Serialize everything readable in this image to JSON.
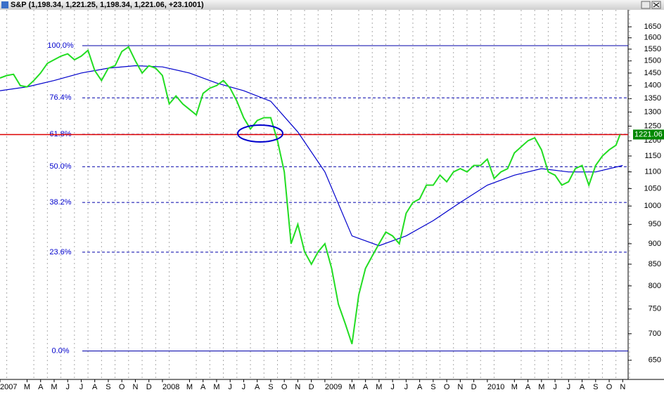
{
  "chart_data": {
    "type": "line",
    "title": "S&P (1,198.34, 1,221.25, 1,198.34, 1,221.06, +23.1001)",
    "log_y": true,
    "grid": true,
    "xlim": [
      0,
      46.4
    ],
    "ylim": [
      616,
      1730
    ],
    "yticks": [
      650,
      700,
      750,
      800,
      850,
      900,
      950,
      1000,
      1050,
      1100,
      1150,
      1200,
      1250,
      1300,
      1350,
      1400,
      1450,
      1500,
      1550,
      1600,
      1650
    ],
    "xticks": [
      {
        "value": 0,
        "label": "2007"
      },
      {
        "value": 2,
        "label": "M"
      },
      {
        "value": 3,
        "label": "A"
      },
      {
        "value": 4,
        "label": "M"
      },
      {
        "value": 5,
        "label": "J"
      },
      {
        "value": 6,
        "label": "J"
      },
      {
        "value": 7,
        "label": "A"
      },
      {
        "value": 8,
        "label": "S"
      },
      {
        "value": 9,
        "label": "O"
      },
      {
        "value": 10,
        "label": "N"
      },
      {
        "value": 11,
        "label": "D"
      },
      {
        "value": 12,
        "label": "2008"
      },
      {
        "value": 14,
        "label": "M"
      },
      {
        "value": 15,
        "label": "A"
      },
      {
        "value": 16,
        "label": "M"
      },
      {
        "value": 17,
        "label": "J"
      },
      {
        "value": 18,
        "label": "J"
      },
      {
        "value": 19,
        "label": "A"
      },
      {
        "value": 20,
        "label": "S"
      },
      {
        "value": 21,
        "label": "O"
      },
      {
        "value": 22,
        "label": "N"
      },
      {
        "value": 23,
        "label": "D"
      },
      {
        "value": 24,
        "label": "2009"
      },
      {
        "value": 26,
        "label": "M"
      },
      {
        "value": 27,
        "label": "A"
      },
      {
        "value": 28,
        "label": "M"
      },
      {
        "value": 29,
        "label": "J"
      },
      {
        "value": 30,
        "label": "J"
      },
      {
        "value": 31,
        "label": "A"
      },
      {
        "value": 32,
        "label": "S"
      },
      {
        "value": 33,
        "label": "O"
      },
      {
        "value": 34,
        "label": "N"
      },
      {
        "value": 35,
        "label": "D"
      },
      {
        "value": 36,
        "label": "2010"
      },
      {
        "value": 38,
        "label": "M"
      },
      {
        "value": 39,
        "label": "A"
      },
      {
        "value": 40,
        "label": "M"
      },
      {
        "value": 41,
        "label": "J"
      },
      {
        "value": 42,
        "label": "J"
      },
      {
        "value": 43,
        "label": "A"
      },
      {
        "value": 44,
        "label": "S"
      },
      {
        "value": 45,
        "label": "O"
      },
      {
        "value": 46,
        "label": "N"
      }
    ],
    "levels": [
      {
        "value": 1565,
        "label": "100.0%"
      },
      {
        "value": 1353,
        "label": "76.4%"
      },
      {
        "value": 1222,
        "label": "61.8%"
      },
      {
        "value": 1116,
        "label": "50.0%"
      },
      {
        "value": 1010,
        "label": "38.2%"
      },
      {
        "value": 879,
        "label": "23.6%"
      },
      {
        "value": 667,
        "label": "0.0%"
      }
    ],
    "last": 1221.06,
    "series": [
      {
        "color": "#0000cc",
        "x": [
          0,
          2,
          4,
          6,
          8,
          10,
          12,
          14,
          16,
          18,
          20,
          22,
          24,
          26,
          28,
          30,
          32,
          34,
          36,
          38,
          40,
          42,
          44,
          46
        ],
        "values": [
          1380,
          1395,
          1420,
          1450,
          1470,
          1480,
          1475,
          1450,
          1410,
          1380,
          1340,
          1230,
          1100,
          920,
          895,
          920,
          960,
          1010,
          1060,
          1090,
          1110,
          1100,
          1100,
          1120
        ]
      },
      {
        "color": "#22dd22",
        "x": [
          0,
          0.5,
          1,
          1.5,
          2,
          2.5,
          3,
          3.5,
          4,
          4.5,
          5,
          5.5,
          6,
          6.5,
          7,
          7.5,
          8,
          8.5,
          9,
          9.5,
          10,
          10.5,
          11,
          11.5,
          12,
          12.5,
          13,
          13.5,
          14,
          14.5,
          15,
          15.5,
          16,
          16.5,
          17,
          17.5,
          18,
          18.5,
          19,
          19.5,
          20,
          20.5,
          21,
          21.5,
          22,
          22.5,
          23,
          23.5,
          24,
          24.5,
          25,
          25.5,
          26,
          26.5,
          27,
          27.5,
          28,
          28.5,
          29,
          29.5,
          30,
          30.5,
          31,
          31.5,
          32,
          32.5,
          33,
          33.5,
          34,
          34.5,
          35,
          35.5,
          36,
          36.5,
          37,
          37.5,
          38,
          38.5,
          39,
          39.5,
          40,
          40.5,
          41,
          41.5,
          42,
          42.5,
          43,
          43.5,
          44,
          44.5,
          45,
          45.5,
          45.8
        ],
        "values": [
          1430,
          1440,
          1445,
          1400,
          1395,
          1420,
          1450,
          1490,
          1505,
          1520,
          1530,
          1505,
          1520,
          1545,
          1460,
          1420,
          1470,
          1480,
          1540,
          1560,
          1500,
          1450,
          1480,
          1470,
          1440,
          1330,
          1360,
          1330,
          1310,
          1290,
          1370,
          1390,
          1400,
          1420,
          1390,
          1340,
          1280,
          1240,
          1270,
          1280,
          1280,
          1200,
          1100,
          900,
          950,
          880,
          850,
          880,
          900,
          840,
          760,
          720,
          680,
          780,
          840,
          870,
          900,
          930,
          920,
          900,
          980,
          1010,
          1020,
          1060,
          1060,
          1090,
          1070,
          1100,
          1110,
          1100,
          1120,
          1120,
          1140,
          1080,
          1100,
          1110,
          1160,
          1180,
          1200,
          1210,
          1170,
          1100,
          1090,
          1060,
          1070,
          1110,
          1120,
          1060,
          1120,
          1150,
          1170,
          1185,
          1221
        ]
      }
    ]
  }
}
